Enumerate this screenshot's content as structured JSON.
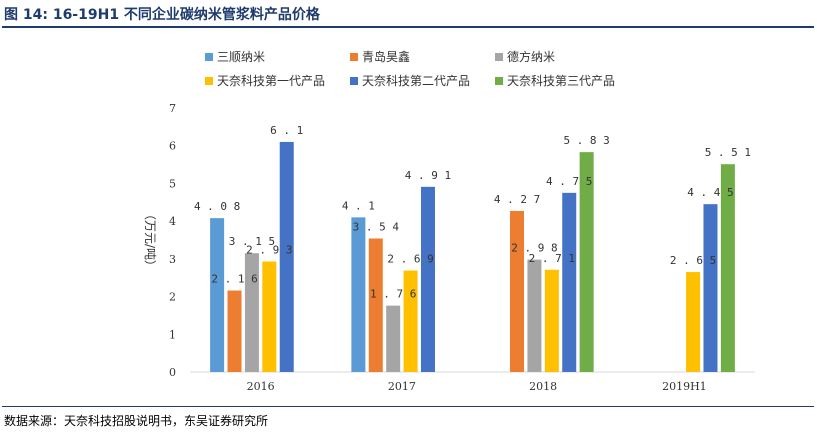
{
  "header": {
    "title": "图 14:  16-19H1 不同企业碳纳米管浆料产品价格"
  },
  "footer": {
    "source": "数据来源：天奈科技招股说明书，东吴证券研究所"
  },
  "chart_data": {
    "type": "bar",
    "title": "",
    "ylabel": "（万元/吨）",
    "xlabel": "",
    "ylim": [
      0,
      7
    ],
    "yticks": [
      0,
      1,
      2,
      3,
      4,
      5,
      6,
      7
    ],
    "grid": false,
    "legend": "top",
    "categories": [
      "2016",
      "2017",
      "2018",
      "2019H1"
    ],
    "series": [
      {
        "name": "三顺纳米",
        "color": "#5b9bd5",
        "values": [
          4.08,
          4.1,
          null,
          null
        ]
      },
      {
        "name": "青岛昊鑫",
        "color": "#ed7d31",
        "values": [
          2.16,
          3.54,
          4.27,
          null
        ]
      },
      {
        "name": "德方纳米",
        "color": "#a5a5a5",
        "values": [
          3.15,
          1.76,
          2.98,
          null
        ]
      },
      {
        "name": "天奈科技第一代产品",
        "color": "#ffc000",
        "values": [
          2.93,
          2.69,
          2.71,
          2.65
        ]
      },
      {
        "name": "天奈科技第二代产品",
        "color": "#4472c4",
        "values": [
          6.1,
          4.91,
          4.75,
          4.45
        ]
      },
      {
        "name": "天奈科技第三代产品",
        "color": "#70ad47",
        "values": [
          null,
          null,
          5.83,
          5.51
        ]
      }
    ],
    "value_labels": [
      [
        "4.08",
        "2.16",
        "3.15",
        "2.93",
        "6.1",
        null
      ],
      [
        "4.1",
        "3.54",
        "1.76",
        "2.69",
        "4.91",
        null
      ],
      [
        null,
        "4.27",
        "2.98",
        "2.71",
        "4.75",
        "5.83"
      ],
      [
        null,
        null,
        null,
        "2.65",
        "4.45",
        "5.51"
      ]
    ]
  }
}
